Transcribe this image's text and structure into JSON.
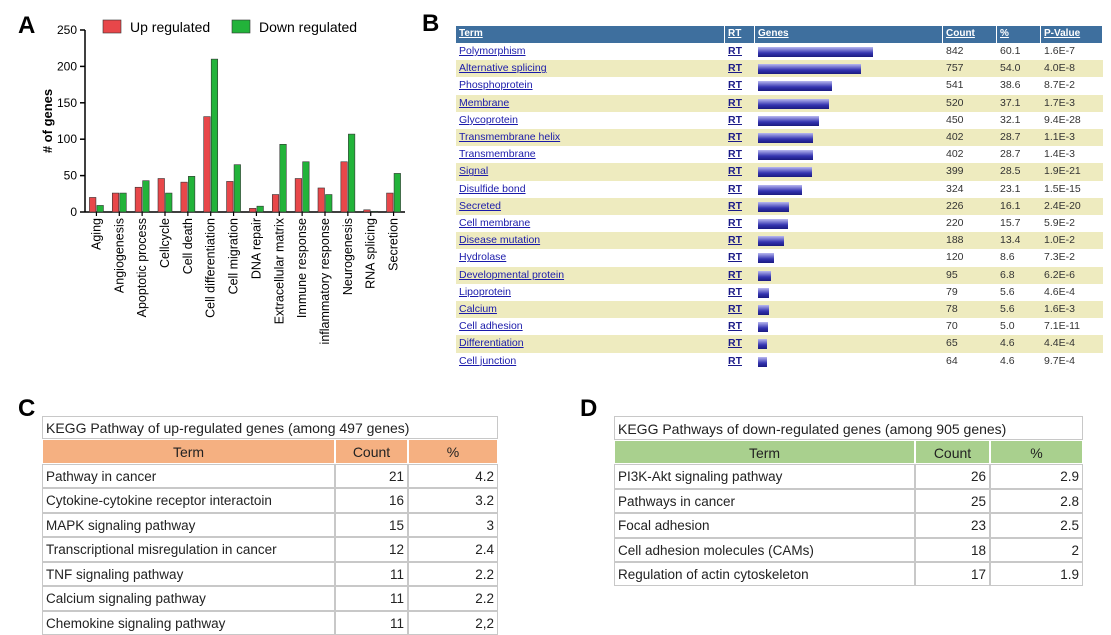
{
  "panel_labels": [
    "A",
    "B",
    "C",
    "D"
  ],
  "chart_data": {
    "type": "bar",
    "y_label": "# of genes",
    "categories": [
      "Aging",
      "Angiogenesis",
      "Apoptotic process",
      "Cellcycle",
      "Cell death",
      "Cell differentiation",
      "Cell migration",
      "DNA repair",
      "Extracellular matrix",
      "Immune response",
      "inflammatory response",
      "Neurogenesis",
      "RNA splicing",
      "Secretion"
    ],
    "series": [
      {
        "name": "Up regulated",
        "color": "#e8474a",
        "values": [
          20,
          26,
          34,
          46,
          41,
          131,
          42,
          5,
          24,
          46,
          33,
          69,
          3,
          26
        ]
      },
      {
        "name": "Down regulated",
        "color": "#22b33a",
        "values": [
          9,
          26,
          43,
          26,
          49,
          210,
          65,
          8,
          93,
          69,
          24,
          107,
          1,
          53
        ]
      }
    ],
    "ylim": [
      0,
      250
    ],
    "yticks": [
      0,
      50,
      100,
      150,
      200,
      250
    ],
    "legend": "top"
  },
  "table_b": {
    "columns": [
      "Term",
      "RT",
      "Genes",
      "Count",
      "%",
      "P-Value"
    ],
    "rt_label": "RT",
    "rows": [
      {
        "term": "Polymorphism",
        "count": 842,
        "percent": "60.1",
        "p_value": "1.6E-7"
      },
      {
        "term": "Alternative splicing",
        "count": 757,
        "percent": "54.0",
        "p_value": "4.0E-8"
      },
      {
        "term": "Phosphoprotein",
        "count": 541,
        "percent": "38.6",
        "p_value": "8.7E-2"
      },
      {
        "term": "Membrane",
        "count": 520,
        "percent": "37.1",
        "p_value": "1.7E-3"
      },
      {
        "term": "Glycoprotein",
        "count": 450,
        "percent": "32.1",
        "p_value": "9.4E-28"
      },
      {
        "term": "Transmembrane helix",
        "count": 402,
        "percent": "28.7",
        "p_value": "1.1E-3"
      },
      {
        "term": "Transmembrane",
        "count": 402,
        "percent": "28.7",
        "p_value": "1.4E-3"
      },
      {
        "term": "Signal",
        "count": 399,
        "percent": "28.5",
        "p_value": "1.9E-21"
      },
      {
        "term": "Disulfide bond",
        "count": 324,
        "percent": "23.1",
        "p_value": "1.5E-15"
      },
      {
        "term": "Secreted",
        "count": 226,
        "percent": "16.1",
        "p_value": "2.4E-20"
      },
      {
        "term": "Cell membrane",
        "count": 220,
        "percent": "15.7",
        "p_value": "5.9E-2"
      },
      {
        "term": "Disease mutation",
        "count": 188,
        "percent": "13.4",
        "p_value": "1.0E-2"
      },
      {
        "term": "Hydrolase",
        "count": 120,
        "percent": "8.6",
        "p_value": "7.3E-2"
      },
      {
        "term": "Developmental protein",
        "count": 95,
        "percent": "6.8",
        "p_value": "6.2E-6"
      },
      {
        "term": "Lipoprotein",
        "count": 79,
        "percent": "5.6",
        "p_value": "4.6E-4"
      },
      {
        "term": "Calcium",
        "count": 78,
        "percent": "5.6",
        "p_value": "1.6E-3"
      },
      {
        "term": "Cell adhesion",
        "count": 70,
        "percent": "5.0",
        "p_value": "7.1E-11"
      },
      {
        "term": "Differentiation",
        "count": 65,
        "percent": "4.6",
        "p_value": "4.4E-4"
      },
      {
        "term": "Cell junction",
        "count": 64,
        "percent": "4.6",
        "p_value": "9.7E-4"
      }
    ]
  },
  "table_c": {
    "title": "KEGG Pathway of up-regulated genes (among 497 genes)",
    "columns": [
      "Term",
      "Count",
      "%"
    ],
    "rows": [
      [
        "Pathway in cancer",
        21,
        "4.2"
      ],
      [
        "Cytokine-cytokine receptor interactoin",
        16,
        "3.2"
      ],
      [
        "MAPK signaling pathway",
        15,
        "3"
      ],
      [
        "Transcriptional misregulation in cancer",
        12,
        "2.4"
      ],
      [
        "TNF signaling pathway",
        11,
        "2.2"
      ],
      [
        "Calcium signaling pathway",
        11,
        "2.2"
      ],
      [
        "Chemokine signaling pathway",
        11,
        "2,2"
      ]
    ]
  },
  "table_d": {
    "title": "KEGG Pathways of down-regulated genes (among 905 genes)",
    "columns": [
      "Term",
      "Count",
      "%"
    ],
    "rows": [
      [
        "PI3K-Akt signaling pathway",
        26,
        "2.9"
      ],
      [
        "Pathways in cancer",
        25,
        "2.8"
      ],
      [
        "Focal adhesion",
        23,
        "2.5"
      ],
      [
        "Cell adhesion molecules (CAMs)",
        18,
        "2"
      ],
      [
        "Regulation of actin cytoskeleton",
        17,
        "1.9"
      ]
    ]
  }
}
